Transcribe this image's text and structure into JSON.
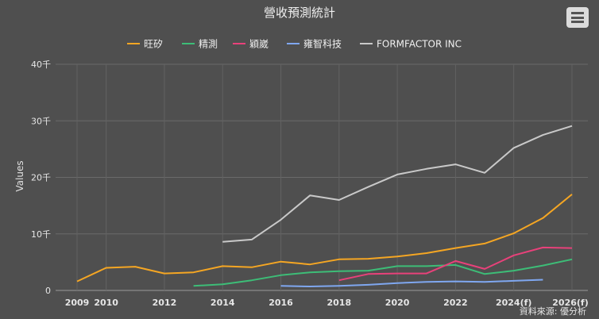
{
  "chart_data": {
    "type": "line",
    "title": "營收預測統計",
    "ylabel": "Values",
    "source": "資料來源: 優分析",
    "ylim": [
      0,
      40000
    ],
    "xlim": [
      2009,
      2026
    ],
    "y_ticks": [
      {
        "value": 0,
        "label": "0"
      },
      {
        "value": 10000,
        "label": "10千"
      },
      {
        "value": 20000,
        "label": "20千"
      },
      {
        "value": 30000,
        "label": "30千"
      },
      {
        "value": 40000,
        "label": "40千"
      }
    ],
    "x_ticks": [
      {
        "value": 2009,
        "label": "2009"
      },
      {
        "value": 2010,
        "label": "2010"
      },
      {
        "value": 2012,
        "label": "2012"
      },
      {
        "value": 2014,
        "label": "2014"
      },
      {
        "value": 2016,
        "label": "2016"
      },
      {
        "value": 2018,
        "label": "2018"
      },
      {
        "value": 2020,
        "label": "2020"
      },
      {
        "value": 2022,
        "label": "2022"
      },
      {
        "value": 2024,
        "label": "2024(f)"
      },
      {
        "value": 2026,
        "label": "2026(f)"
      }
    ],
    "grid": true,
    "legend_position": "top",
    "series": [
      {
        "name": "旺矽",
        "color": "#f5a623",
        "points": [
          [
            2009,
            1600
          ],
          [
            2010,
            4000
          ],
          [
            2011,
            4200
          ],
          [
            2012,
            3000
          ],
          [
            2013,
            3200
          ],
          [
            2014,
            4300
          ],
          [
            2015,
            4100
          ],
          [
            2016,
            5100
          ],
          [
            2017,
            4600
          ],
          [
            2018,
            5500
          ],
          [
            2019,
            5600
          ],
          [
            2020,
            6000
          ],
          [
            2021,
            6600
          ],
          [
            2022,
            7500
          ],
          [
            2023,
            8300
          ],
          [
            2024,
            10100
          ],
          [
            2025,
            12800
          ],
          [
            2026,
            17000
          ]
        ]
      },
      {
        "name": "精測",
        "color": "#3dbd77",
        "points": [
          [
            2013,
            800
          ],
          [
            2014,
            1100
          ],
          [
            2015,
            1800
          ],
          [
            2016,
            2700
          ],
          [
            2017,
            3200
          ],
          [
            2018,
            3400
          ],
          [
            2019,
            3500
          ],
          [
            2020,
            4300
          ],
          [
            2021,
            4300
          ],
          [
            2022,
            4500
          ],
          [
            2023,
            2900
          ],
          [
            2024,
            3500
          ],
          [
            2025,
            4400
          ],
          [
            2026,
            5500
          ]
        ]
      },
      {
        "name": "穎崴",
        "color": "#e8417a",
        "points": [
          [
            2018,
            1800
          ],
          [
            2019,
            2900
          ],
          [
            2020,
            3000
          ],
          [
            2021,
            3000
          ],
          [
            2022,
            5200
          ],
          [
            2023,
            3800
          ],
          [
            2024,
            6200
          ],
          [
            2025,
            7600
          ],
          [
            2026,
            7500
          ]
        ]
      },
      {
        "name": "雍智科技",
        "color": "#7fa7f0",
        "points": [
          [
            2016,
            800
          ],
          [
            2017,
            700
          ],
          [
            2018,
            800
          ],
          [
            2019,
            1000
          ],
          [
            2020,
            1300
          ],
          [
            2021,
            1500
          ],
          [
            2022,
            1600
          ],
          [
            2023,
            1500
          ],
          [
            2024,
            1700
          ],
          [
            2025,
            1900
          ]
        ]
      },
      {
        "name": "FORMFACTOR INC",
        "color": "#c9c9c9",
        "points": [
          [
            2014,
            8600
          ],
          [
            2015,
            9000
          ],
          [
            2016,
            12500
          ],
          [
            2017,
            16800
          ],
          [
            2018,
            16000
          ],
          [
            2019,
            18300
          ],
          [
            2020,
            20500
          ],
          [
            2021,
            21500
          ],
          [
            2022,
            22300
          ],
          [
            2023,
            20800
          ],
          [
            2024,
            25200
          ],
          [
            2025,
            27500
          ],
          [
            2026,
            29100
          ]
        ]
      }
    ]
  }
}
